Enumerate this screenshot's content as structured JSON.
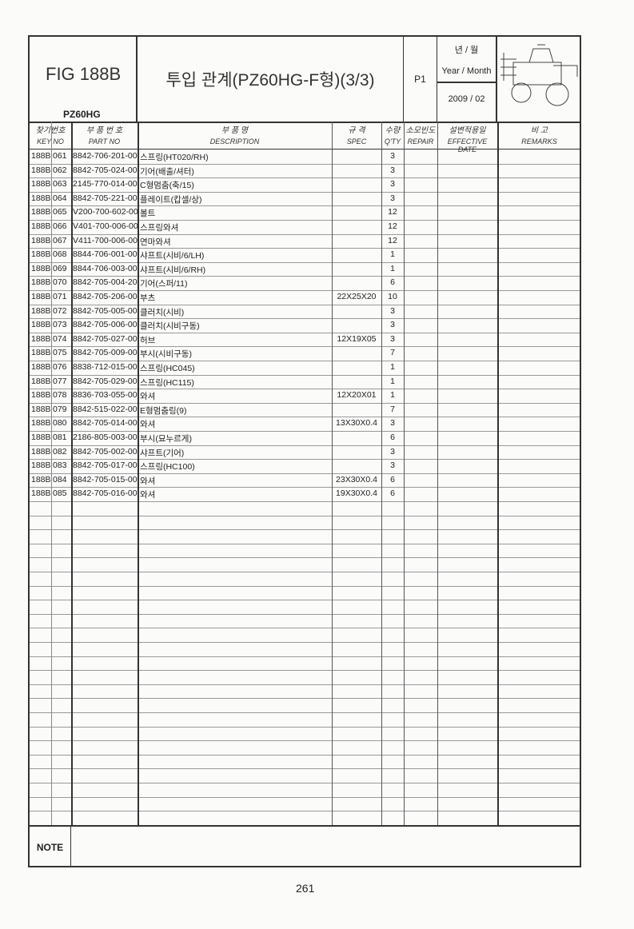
{
  "header": {
    "fig": "FIG 188B",
    "model": "PZ60HG",
    "title": "투입 관계(PZ60HG-F형)(3/3)",
    "page_code": "P1",
    "year_month_kr": "년 / 월",
    "year_month_en": "Year / Month",
    "date": "2009 / 02",
    "image": "rice-transplanter-illustration"
  },
  "columns": [
    {
      "kr": "찾기번호",
      "en": "KEY NO"
    },
    {
      "kr": "부 품 번 호",
      "en": "PART NO"
    },
    {
      "kr": "부 품 명",
      "en": "DESCRIPTION"
    },
    {
      "kr": "규 격",
      "en": "SPEC"
    },
    {
      "kr": "수량",
      "en": "Q'TY"
    },
    {
      "kr": "소모빈도",
      "en": "REPAIR"
    },
    {
      "kr": "설변적용일",
      "en": "EFFECTIVE DATE"
    },
    {
      "kr": "비 고",
      "en": "REMARKS"
    }
  ],
  "rows": [
    [
      "188B",
      "061",
      "8842-706-201-00",
      "스프링(HT020/RH)",
      "",
      "3"
    ],
    [
      "188B",
      "062",
      "8842-705-024-00",
      "기어(배출/셔터)",
      "",
      "3"
    ],
    [
      "188B",
      "063",
      "2145-770-014-00",
      "C형멈춤(축/15)",
      "",
      "3"
    ],
    [
      "188B",
      "064",
      "8842-705-221-00",
      "플레이트(캅셀/상)",
      "",
      "3"
    ],
    [
      "188B",
      "065",
      "V200-700-602-00",
      "볼트",
      "",
      "12"
    ],
    [
      "188B",
      "066",
      "V401-700-006-00",
      "스프링와셔",
      "",
      "12"
    ],
    [
      "188B",
      "067",
      "V411-700-006-00",
      "연마와셔",
      "",
      "12"
    ],
    [
      "188B",
      "068",
      "8844-706-001-00",
      "샤프트(시비/6/LH)",
      "",
      "1"
    ],
    [
      "188B",
      "069",
      "8844-706-003-00",
      "샤프트(시비/6/RH)",
      "",
      "1"
    ],
    [
      "188B",
      "070",
      "8842-705-004-20",
      "기어(스퍼/11)",
      "",
      "6"
    ],
    [
      "188B",
      "071",
      "8842-705-206-00",
      "부츠",
      "22X25X20",
      "10"
    ],
    [
      "188B",
      "072",
      "8842-705-005-00",
      "클러치(시비)",
      "",
      "3"
    ],
    [
      "188B",
      "073",
      "8842-705-006-00",
      "클러치(시비구동)",
      "",
      "3"
    ],
    [
      "188B",
      "074",
      "8842-705-027-00",
      "허브",
      "12X19X05",
      "3"
    ],
    [
      "188B",
      "075",
      "8842-705-009-00",
      "부시(시비구동)",
      "",
      "7"
    ],
    [
      "188B",
      "076",
      "8838-712-015-00",
      "스프링(HC045)",
      "",
      "1"
    ],
    [
      "188B",
      "077",
      "8842-705-029-00",
      "스프링(HC115)",
      "",
      "1"
    ],
    [
      "188B",
      "078",
      "8836-703-055-00",
      "와셔",
      "12X20X01",
      "1"
    ],
    [
      "188B",
      "079",
      "8842-515-022-00",
      "E형멈춤링(9)",
      "",
      "7"
    ],
    [
      "188B",
      "080",
      "8842-705-014-00",
      "와셔",
      "13X30X0.4",
      "3"
    ],
    [
      "188B",
      "081",
      "2186-805-003-00",
      "부시(묘누르게)",
      "",
      "6"
    ],
    [
      "188B",
      "082",
      "8842-705-002-00",
      "샤프트(기어)",
      "",
      "3"
    ],
    [
      "188B",
      "083",
      "8842-705-017-00",
      "스프링(HC100)",
      "",
      "3"
    ],
    [
      "188B",
      "084",
      "8842-705-015-00",
      "와셔",
      "23X30X0.4",
      "6"
    ],
    [
      "188B",
      "085",
      "8842-705-016-00",
      "와셔",
      "19X30X0.4",
      "6"
    ]
  ],
  "note_label": "NOTE",
  "page_number": "261"
}
